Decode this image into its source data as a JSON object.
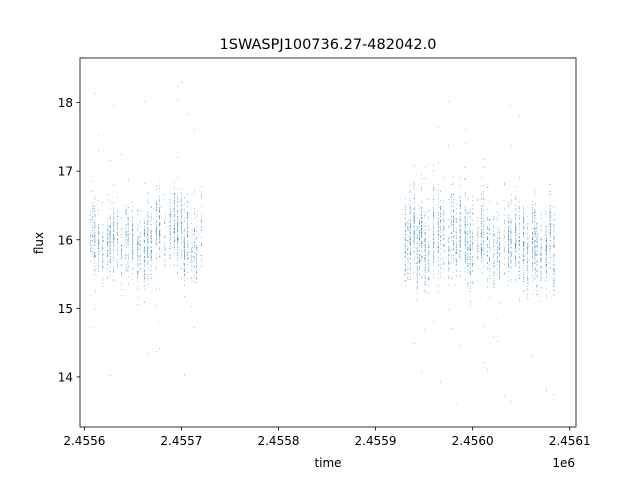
{
  "chart_data": {
    "type": "scatter",
    "title": "1SWASPJ100736.27-482042.0",
    "xlabel": "time",
    "ylabel": "flux",
    "x_offset_label": "1e6",
    "xlim": [
      2455595.5,
      2456106.5
    ],
    "ylim": [
      13.27,
      18.65
    ],
    "xticks": [
      2455600,
      2455700,
      2455800,
      2455900,
      2456000,
      2456100
    ],
    "xtick_labels": [
      "2.4556",
      "2.4557",
      "2.4558",
      "2.4559",
      "2.4560",
      "2.4561"
    ],
    "yticks": [
      14,
      15,
      16,
      17,
      18
    ],
    "ytick_labels": [
      "14",
      "15",
      "16",
      "17",
      "18"
    ],
    "grid": false,
    "legend": "none",
    "series_color": "#1f77b4",
    "segments": [
      {
        "x_range": [
          2455606,
          2455720
        ],
        "flux_center": 16.0,
        "flux_spread": 0.45
      },
      {
        "x_range": [
          2455930,
          2456084
        ],
        "flux_center": 16.0,
        "flux_spread": 0.5
      }
    ]
  }
}
